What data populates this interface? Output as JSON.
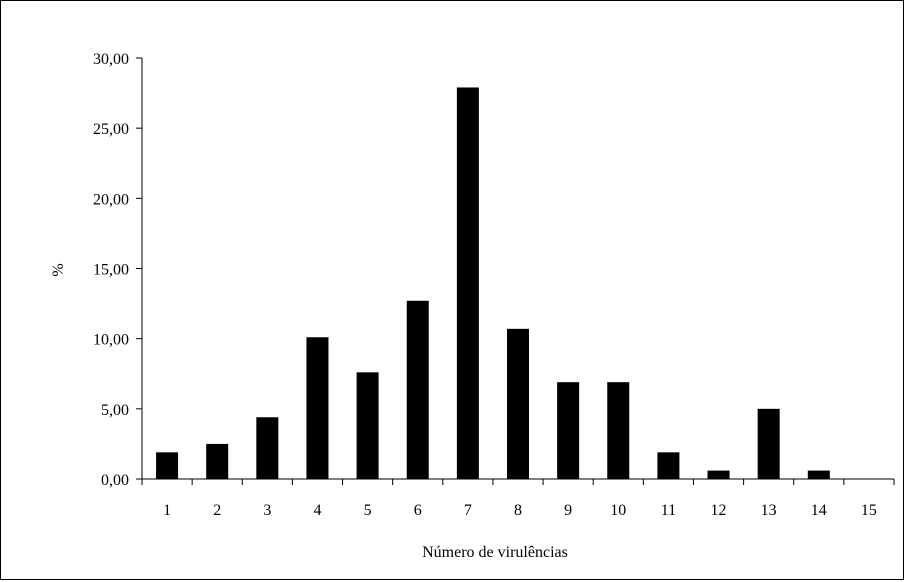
{
  "chart_data": {
    "type": "bar",
    "categories": [
      "1",
      "2",
      "3",
      "4",
      "5",
      "6",
      "7",
      "8",
      "9",
      "10",
      "11",
      "12",
      "13",
      "14",
      "15"
    ],
    "values": [
      1.9,
      2.5,
      4.4,
      10.1,
      7.6,
      12.7,
      27.9,
      10.7,
      6.9,
      6.9,
      1.9,
      0.6,
      5.0,
      0.6,
      0.0
    ],
    "title": "",
    "xlabel": "Número de virulências",
    "ylabel": "%",
    "ylim": [
      0,
      30
    ],
    "yticks": [
      "0,00",
      "5,00",
      "10,00",
      "15,00",
      "20,00",
      "25,00",
      "30,00"
    ],
    "grid": false,
    "legend": "none",
    "bar_color": "#000000"
  }
}
